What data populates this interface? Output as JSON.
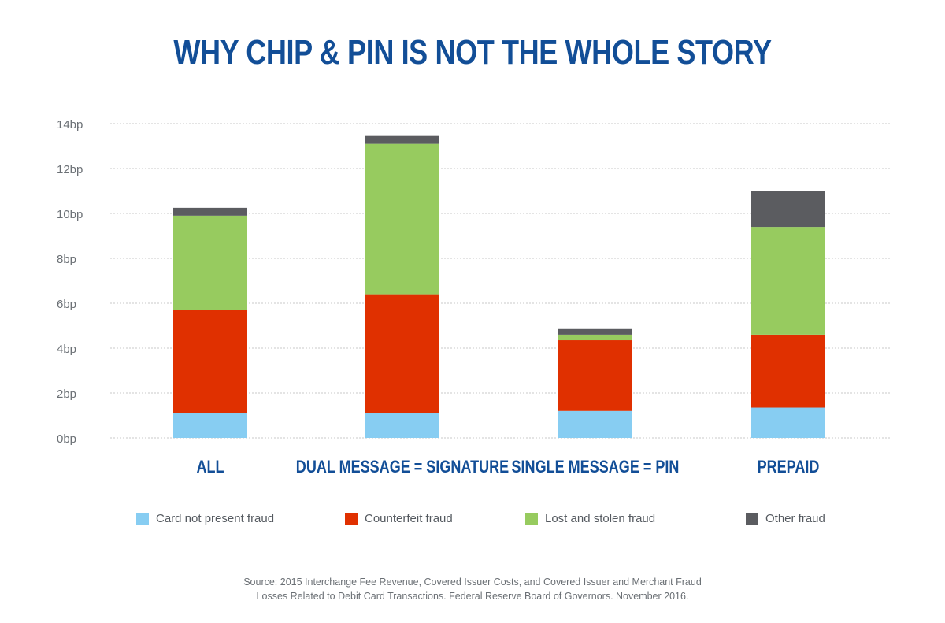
{
  "title": "WHY CHIP & PIN IS NOT THE WHOLE STORY",
  "chart_data": {
    "type": "bar",
    "stacked": true,
    "categories": [
      "ALL",
      "DUAL MESSAGE = SIGNATURE",
      "SINGLE MESSAGE = PIN",
      "PREPAID"
    ],
    "series": [
      {
        "name": "Card not present fraud",
        "color": "#87cdf2",
        "values": [
          1.1,
          1.1,
          1.2,
          1.35
        ]
      },
      {
        "name": "Counterfeit fraud",
        "color": "#e03000",
        "values": [
          4.6,
          5.3,
          3.15,
          3.25
        ]
      },
      {
        "name": "Lost and stolen fraud",
        "color": "#97cb5f",
        "values": [
          4.2,
          6.7,
          0.25,
          4.8
        ]
      },
      {
        "name": "Other fraud",
        "color": "#5b5c60",
        "values": [
          0.35,
          0.35,
          0.25,
          1.6
        ]
      }
    ],
    "y_ticks": [
      "0bp",
      "2bp",
      "4bp",
      "6bp",
      "8bp",
      "10bp",
      "12bp",
      "14bp"
    ],
    "ylim": [
      0,
      14
    ],
    "grid": true,
    "legend_position": "bottom"
  },
  "source": [
    "Source: 2015 Interchange Fee Revenue, Covered Issuer Costs, and Covered Issuer and Merchant Fraud",
    "Losses Related to Debit Card Transactions. Federal Reserve Board of Governors. November 2016."
  ]
}
